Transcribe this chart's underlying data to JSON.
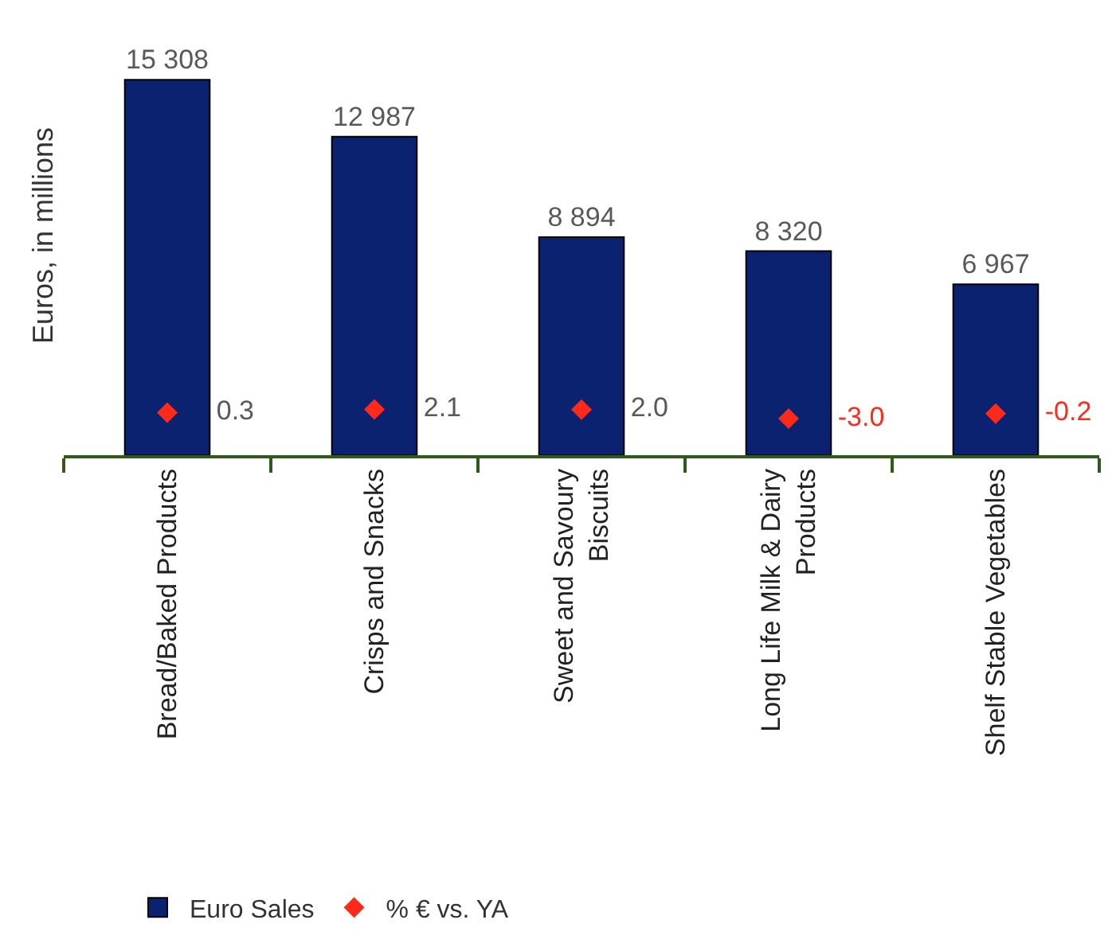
{
  "chart_data": {
    "type": "bar",
    "ylabel": "Euros, in millions",
    "categories": [
      "Bread/Baked Products",
      "Crisps and Snacks",
      "Sweet and Savoury Biscuits",
      "Long Life Milk & Dairy Products",
      "Shelf Stable Vegetables"
    ],
    "series": [
      {
        "name": "Euro Sales",
        "color": "#0a2270",
        "values": [
          15308,
          12987,
          8894,
          8320,
          6967
        ],
        "value_labels": [
          "15 308",
          "12 987",
          "8 894",
          "8 320",
          "6 967"
        ]
      },
      {
        "name": "% € vs. YA",
        "type": "scatter",
        "axis": "y2",
        "color": "#ff2a1a",
        "values": [
          0.3,
          2.1,
          2.0,
          -3.0,
          -0.2
        ],
        "value_labels": [
          "0.3",
          "2.1",
          "2.0",
          "-3.0",
          "-0.2"
        ]
      }
    ],
    "marker": "diamond",
    "legend": "bottom left",
    "grid": false
  }
}
